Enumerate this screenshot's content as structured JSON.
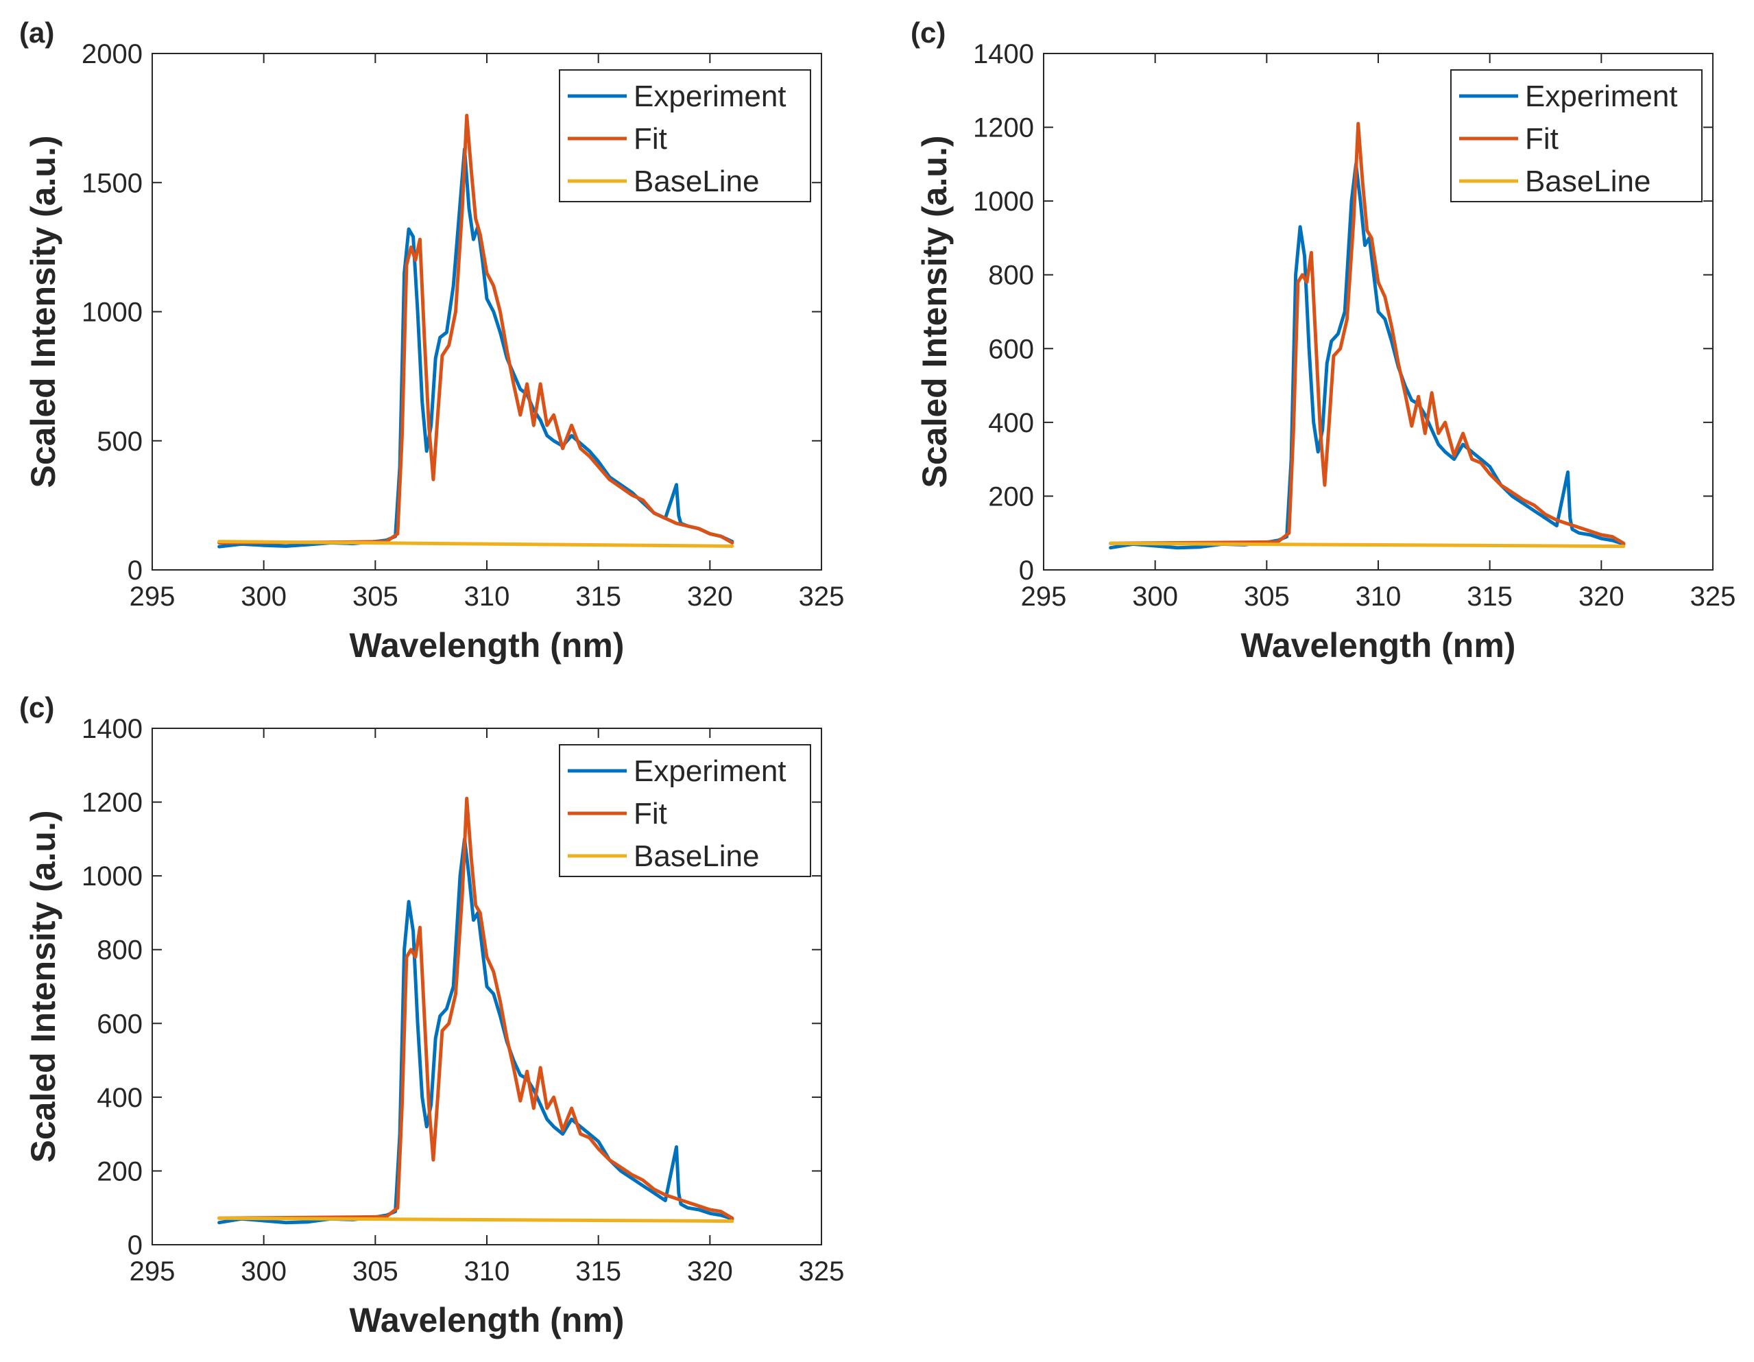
{
  "figure": {
    "panels": [
      {
        "label": "(a)"
      },
      {
        "label": "(c)"
      },
      {
        "label": "(c)"
      }
    ]
  },
  "chart_data": [
    {
      "type": "line",
      "panel_label": "(a)",
      "xlabel": "Wavelength (nm)",
      "ylabel": "Scaled Intensity (a.u.)",
      "xlim": [
        295,
        325
      ],
      "ylim": [
        0,
        2000
      ],
      "xticks": [
        295,
        300,
        305,
        310,
        315,
        320,
        325
      ],
      "yticks": [
        0,
        500,
        1000,
        1500,
        2000
      ],
      "legend_position": "top-right",
      "grid": false,
      "series": [
        {
          "name": "Experiment",
          "color": "#0072BD",
          "x": [
            298,
            299,
            300,
            301,
            302,
            303,
            304,
            305,
            305.5,
            305.9,
            306.1,
            306.3,
            306.5,
            306.7,
            306.9,
            307.1,
            307.3,
            307.5,
            307.7,
            307.9,
            308.2,
            308.5,
            308.8,
            309.0,
            309.2,
            309.4,
            309.6,
            309.8,
            310.0,
            310.3,
            310.6,
            310.9,
            311.2,
            311.5,
            311.8,
            312.1,
            312.4,
            312.7,
            313.0,
            313.4,
            313.8,
            314.2,
            314.6,
            315.0,
            315.5,
            316.0,
            316.5,
            317.0,
            317.5,
            318.0,
            318.5,
            318.6,
            318.7,
            319.0,
            319.5,
            320.0,
            320.5,
            321.0
          ],
          "y": [
            90,
            100,
            95,
            92,
            98,
            105,
            102,
            110,
            115,
            130,
            400,
            1150,
            1320,
            1290,
            1000,
            650,
            460,
            560,
            820,
            900,
            920,
            1100,
            1420,
            1630,
            1400,
            1280,
            1330,
            1200,
            1050,
            1000,
            920,
            820,
            760,
            700,
            680,
            620,
            580,
            520,
            500,
            480,
            520,
            490,
            460,
            420,
            360,
            330,
            300,
            260,
            220,
            200,
            330,
            210,
            180,
            170,
            160,
            140,
            130,
            110
          ]
        },
        {
          "name": "Fit",
          "color": "#D95319",
          "x": [
            298,
            300,
            302,
            304,
            305.5,
            306.0,
            306.2,
            306.4,
            306.6,
            306.8,
            307.0,
            307.2,
            307.4,
            307.6,
            307.8,
            308.0,
            308.3,
            308.6,
            308.9,
            309.1,
            309.3,
            309.5,
            309.7,
            310.0,
            310.3,
            310.6,
            310.9,
            311.2,
            311.5,
            311.8,
            312.1,
            312.4,
            312.7,
            313.0,
            313.4,
            313.8,
            314.2,
            314.6,
            315.0,
            315.5,
            316.0,
            316.5,
            317.0,
            317.5,
            318.0,
            318.5,
            319.0,
            319.5,
            320.0,
            320.5,
            321.0
          ],
          "y": [
            105,
            106,
            107,
            108,
            110,
            140,
            520,
            1180,
            1250,
            1200,
            1280,
            900,
            560,
            350,
            600,
            830,
            870,
            1000,
            1400,
            1760,
            1550,
            1360,
            1300,
            1150,
            1100,
            1000,
            850,
            720,
            600,
            720,
            560,
            720,
            560,
            600,
            470,
            560,
            470,
            440,
            400,
            350,
            320,
            290,
            270,
            220,
            200,
            180,
            170,
            160,
            140,
            130,
            105
          ]
        },
        {
          "name": "BaseLine",
          "color": "#EDB120",
          "x": [
            298,
            321
          ],
          "y": [
            110,
            92
          ]
        }
      ]
    },
    {
      "type": "line",
      "panel_label": "(c)",
      "xlabel": "Wavelength (nm)",
      "ylabel": "Scaled Intensity (a.u.)",
      "xlim": [
        295,
        325
      ],
      "ylim": [
        0,
        1400
      ],
      "xticks": [
        295,
        300,
        305,
        310,
        315,
        320,
        325
      ],
      "yticks": [
        0,
        200,
        400,
        600,
        800,
        1000,
        1200,
        1400
      ],
      "legend_position": "top-right",
      "grid": false,
      "series": [
        {
          "name": "Experiment",
          "color": "#0072BD",
          "x": [
            298,
            299,
            300,
            301,
            302,
            303,
            304,
            305,
            305.5,
            305.9,
            306.1,
            306.3,
            306.5,
            306.7,
            306.9,
            307.1,
            307.3,
            307.5,
            307.7,
            307.9,
            308.2,
            308.5,
            308.8,
            309.0,
            309.2,
            309.4,
            309.6,
            309.8,
            310.0,
            310.3,
            310.6,
            310.9,
            311.2,
            311.5,
            311.8,
            312.1,
            312.4,
            312.7,
            313.0,
            313.4,
            313.8,
            314.2,
            314.6,
            315.0,
            315.5,
            316.0,
            316.5,
            317.0,
            317.5,
            318.0,
            318.5,
            318.6,
            318.7,
            319.0,
            319.5,
            320.0,
            320.5,
            321.0
          ],
          "y": [
            60,
            70,
            65,
            60,
            62,
            70,
            68,
            75,
            80,
            90,
            300,
            800,
            930,
            850,
            600,
            400,
            320,
            380,
            560,
            620,
            640,
            700,
            1000,
            1100,
            1000,
            880,
            900,
            800,
            700,
            680,
            620,
            550,
            500,
            460,
            450,
            420,
            380,
            340,
            320,
            300,
            340,
            320,
            300,
            280,
            230,
            200,
            180,
            160,
            140,
            120,
            265,
            140,
            110,
            100,
            95,
            85,
            80,
            70
          ]
        },
        {
          "name": "Fit",
          "color": "#D95319",
          "x": [
            298,
            300,
            302,
            304,
            305.5,
            306.0,
            306.2,
            306.4,
            306.6,
            306.8,
            307.0,
            307.2,
            307.4,
            307.6,
            307.8,
            308.0,
            308.3,
            308.6,
            308.9,
            309.1,
            309.3,
            309.5,
            309.7,
            310.0,
            310.3,
            310.6,
            310.9,
            311.2,
            311.5,
            311.8,
            312.1,
            312.4,
            312.7,
            313.0,
            313.4,
            313.8,
            314.2,
            314.6,
            315.0,
            315.5,
            316.0,
            316.5,
            317.0,
            317.5,
            318.0,
            318.5,
            319.0,
            319.5,
            320.0,
            320.5,
            321.0
          ],
          "y": [
            72,
            73,
            74,
            75,
            76,
            100,
            380,
            780,
            800,
            780,
            860,
            620,
            380,
            230,
            400,
            580,
            600,
            680,
            950,
            1210,
            1050,
            920,
            900,
            780,
            740,
            660,
            560,
            480,
            390,
            470,
            370,
            480,
            370,
            400,
            310,
            370,
            300,
            290,
            260,
            230,
            210,
            190,
            175,
            150,
            135,
            125,
            115,
            105,
            95,
            90,
            72
          ]
        },
        {
          "name": "BaseLine",
          "color": "#EDB120",
          "x": [
            298,
            321
          ],
          "y": [
            72,
            64
          ]
        }
      ]
    },
    {
      "type": "line",
      "panel_label": "(c)",
      "xlabel": "Wavelength (nm)",
      "ylabel": "Scaled Intensity (a.u.)",
      "xlim": [
        295,
        325
      ],
      "ylim": [
        0,
        1400
      ],
      "xticks": [
        295,
        300,
        305,
        310,
        315,
        320,
        325
      ],
      "yticks": [
        0,
        200,
        400,
        600,
        800,
        1000,
        1200,
        1400
      ],
      "legend_position": "top-right",
      "grid": false,
      "series": [
        {
          "name": "Experiment",
          "color": "#0072BD",
          "x": [
            298,
            299,
            300,
            301,
            302,
            303,
            304,
            305,
            305.5,
            305.9,
            306.1,
            306.3,
            306.5,
            306.7,
            306.9,
            307.1,
            307.3,
            307.5,
            307.7,
            307.9,
            308.2,
            308.5,
            308.8,
            309.0,
            309.2,
            309.4,
            309.6,
            309.8,
            310.0,
            310.3,
            310.6,
            310.9,
            311.2,
            311.5,
            311.8,
            312.1,
            312.4,
            312.7,
            313.0,
            313.4,
            313.8,
            314.2,
            314.6,
            315.0,
            315.5,
            316.0,
            316.5,
            317.0,
            317.5,
            318.0,
            318.5,
            318.6,
            318.7,
            319.0,
            319.5,
            320.0,
            320.5,
            321.0
          ],
          "y": [
            60,
            70,
            65,
            60,
            62,
            70,
            68,
            75,
            80,
            90,
            300,
            800,
            930,
            850,
            600,
            400,
            320,
            380,
            560,
            620,
            640,
            700,
            1000,
            1100,
            1000,
            880,
            900,
            800,
            700,
            680,
            620,
            550,
            500,
            460,
            450,
            420,
            380,
            340,
            320,
            300,
            340,
            320,
            300,
            280,
            230,
            200,
            180,
            160,
            140,
            120,
            265,
            140,
            110,
            100,
            95,
            85,
            80,
            70
          ]
        },
        {
          "name": "Fit",
          "color": "#D95319",
          "x": [
            298,
            300,
            302,
            304,
            305.5,
            306.0,
            306.2,
            306.4,
            306.6,
            306.8,
            307.0,
            307.2,
            307.4,
            307.6,
            307.8,
            308.0,
            308.3,
            308.6,
            308.9,
            309.1,
            309.3,
            309.5,
            309.7,
            310.0,
            310.3,
            310.6,
            310.9,
            311.2,
            311.5,
            311.8,
            312.1,
            312.4,
            312.7,
            313.0,
            313.4,
            313.8,
            314.2,
            314.6,
            315.0,
            315.5,
            316.0,
            316.5,
            317.0,
            317.5,
            318.0,
            318.5,
            319.0,
            319.5,
            320.0,
            320.5,
            321.0
          ],
          "y": [
            72,
            73,
            74,
            75,
            76,
            100,
            380,
            780,
            800,
            780,
            860,
            620,
            380,
            230,
            400,
            580,
            600,
            680,
            950,
            1210,
            1050,
            920,
            900,
            780,
            740,
            660,
            560,
            480,
            390,
            470,
            370,
            480,
            370,
            400,
            310,
            370,
            300,
            290,
            260,
            230,
            210,
            190,
            175,
            150,
            135,
            125,
            115,
            105,
            95,
            90,
            72
          ]
        },
        {
          "name": "BaseLine",
          "color": "#EDB120",
          "x": [
            298,
            321
          ],
          "y": [
            72,
            64
          ]
        }
      ]
    }
  ]
}
